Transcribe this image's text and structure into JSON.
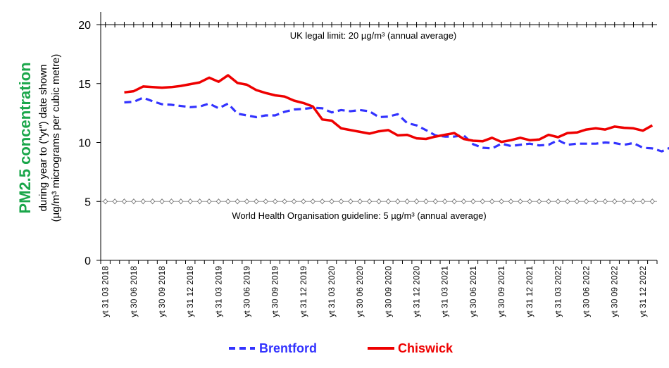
{
  "chart_data": {
    "type": "line",
    "ylabel_main": "PM2.5 concentration",
    "ylabel_line1": "during year to (\"yt\") date shown",
    "ylabel_line2": "(µg/m³ micrograms per cubic metre)",
    "ylim": [
      0,
      20
    ],
    "yticks": [
      0,
      5,
      10,
      15,
      20
    ],
    "grid": false,
    "legend_position": "bottom",
    "colors": {
      "brentford": "#3333ff",
      "chiswick": "#ee0000",
      "axis_title": "#1aa64a"
    },
    "x_labels": [
      "yt 31 03 2018",
      "yt 30 06 2018",
      "yt 30 09 2018",
      "yt 31 12 2018",
      "yt 31 03 2019",
      "yt 30 06 2019",
      "yt 30 09 2019",
      "yt 31 12 2019",
      "yt 31 03 2020",
      "yt 30 06 2020",
      "yt 30 09 2020",
      "yt 31 12 2020",
      "yt 31 03 2021",
      "yt 30 06 2021",
      "yt 30 09 2021",
      "yt 31 12 2021",
      "yt 31 03 2022",
      "yt 30 06 2022",
      "yt 30 09 2022",
      "yt 31 12 2022"
    ],
    "annotations": {
      "uk_limit": {
        "value": 20,
        "label": "UK legal limit: 20 µg/m³ (annual average)"
      },
      "who_guideline": {
        "value": 5,
        "label": "World Health Organisation guideline: 5 µg/m³ (annual average)"
      }
    },
    "series": [
      {
        "name": "Brentford",
        "style": "dashed",
        "values": [
          13.4,
          13.45,
          13.8,
          13.5,
          13.25,
          13.2,
          13.1,
          13.0,
          13.05,
          13.3,
          12.9,
          13.3,
          12.45,
          12.3,
          12.15,
          12.3,
          12.3,
          12.6,
          12.8,
          12.85,
          12.95,
          12.9,
          12.55,
          12.75,
          12.65,
          12.75,
          12.65,
          12.15,
          12.2,
          12.4,
          11.65,
          11.45,
          11.05,
          10.6,
          10.5,
          10.5,
          10.6,
          9.85,
          9.55,
          9.5,
          9.9,
          9.7,
          9.8,
          9.9,
          9.75,
          9.8,
          10.2,
          9.8,
          9.9,
          9.9,
          9.9,
          10.0,
          9.95,
          9.8,
          9.95,
          9.55,
          9.5,
          9.25,
          9.6
        ]
      },
      {
        "name": "Chiswick",
        "style": "solid",
        "values": [
          14.25,
          14.35,
          14.75,
          14.7,
          14.65,
          14.7,
          14.8,
          14.95,
          15.1,
          15.5,
          15.15,
          15.7,
          15.05,
          14.9,
          14.45,
          14.2,
          14.0,
          13.9,
          13.55,
          13.35,
          13.05,
          11.95,
          11.85,
          11.2,
          11.05,
          10.9,
          10.75,
          10.95,
          11.05,
          10.6,
          10.65,
          10.35,
          10.3,
          10.5,
          10.65,
          10.8,
          10.3,
          10.15,
          10.1,
          10.4,
          10.05,
          10.2,
          10.4,
          10.2,
          10.25,
          10.65,
          10.45,
          10.8,
          10.85,
          11.1,
          11.2,
          11.1,
          11.35,
          11.25,
          11.2,
          11.0,
          11.45
        ]
      }
    ]
  }
}
